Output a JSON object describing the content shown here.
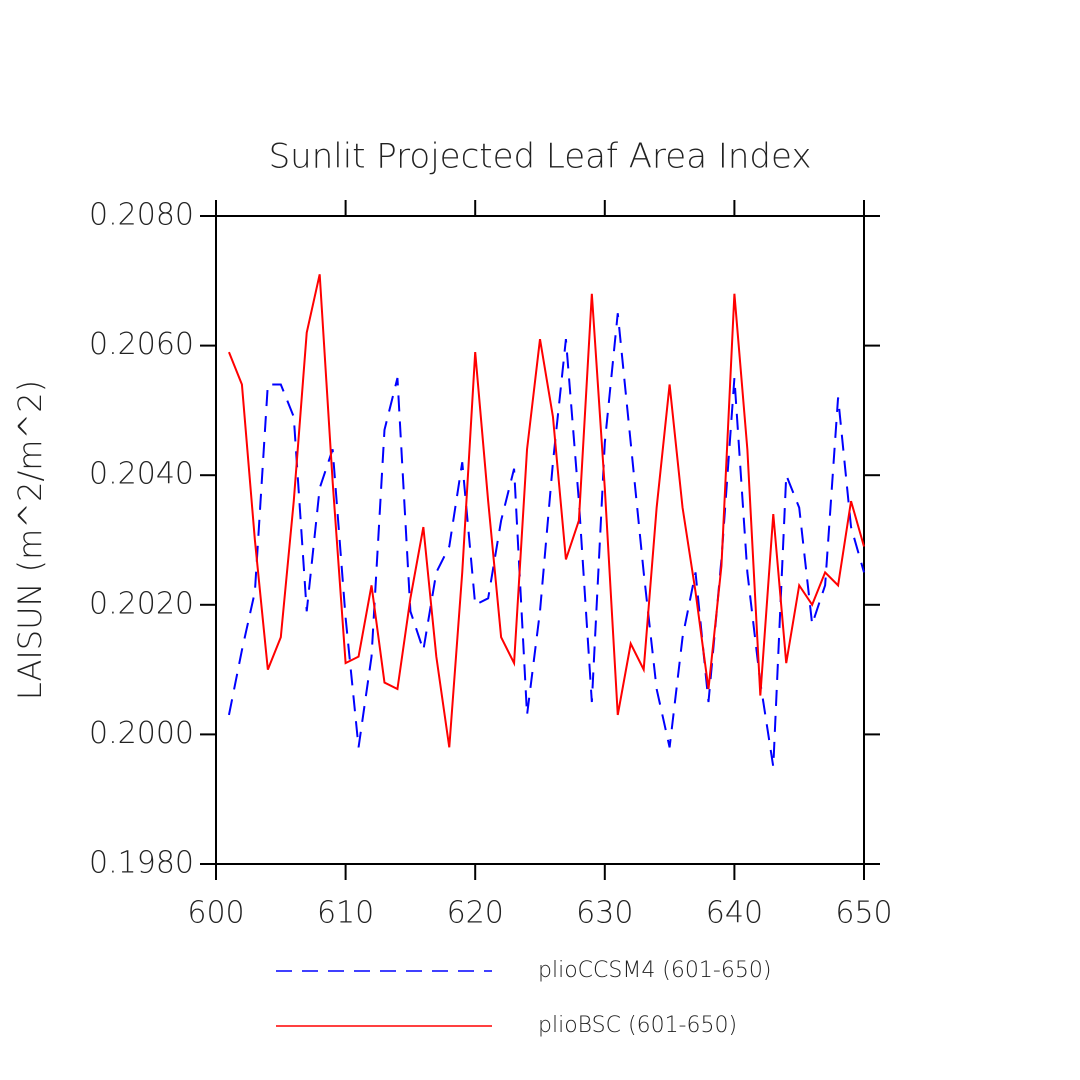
{
  "chart_data": {
    "type": "line",
    "title": "Sunlit Projected Leaf Area Index",
    "y_label": "LAISUN  (m^2/m^2)",
    "x": [
      601,
      602,
      603,
      604,
      605,
      606,
      607,
      608,
      609,
      610,
      611,
      612,
      613,
      614,
      615,
      616,
      617,
      618,
      619,
      620,
      621,
      622,
      623,
      624,
      625,
      626,
      627,
      628,
      629,
      630,
      631,
      632,
      633,
      634,
      635,
      636,
      637,
      638,
      639,
      640,
      641,
      642,
      643,
      644,
      645,
      646,
      647,
      648,
      649,
      650
    ],
    "series": [
      {
        "name": "plioCCSM4 (601-650)",
        "color": "#0000ff",
        "line_style": "dashed",
        "values": [
          0.2003,
          0.2013,
          0.2022,
          0.2054,
          0.2054,
          0.2049,
          0.2019,
          0.2038,
          0.2044,
          0.2018,
          0.1998,
          0.2012,
          0.2047,
          0.2055,
          0.2019,
          0.2013,
          0.2025,
          0.2029,
          0.2042,
          0.202,
          0.2021,
          0.2033,
          0.2041,
          0.2003,
          0.2019,
          0.2042,
          0.2061,
          0.2036,
          0.2005,
          0.2045,
          0.2065,
          0.2045,
          0.2025,
          0.2007,
          0.1998,
          0.2015,
          0.2025,
          0.2005,
          0.2027,
          0.2055,
          0.2025,
          0.2008,
          0.1995,
          0.204,
          0.2035,
          0.2017,
          0.2023,
          0.2052,
          0.2032,
          0.2025
        ]
      },
      {
        "name": "plioBSC (601-650)",
        "color": "#ff0000",
        "line_style": "solid",
        "values": [
          0.2059,
          0.2054,
          0.203,
          0.201,
          0.2015,
          0.2036,
          0.2062,
          0.2071,
          0.2039,
          0.2011,
          0.2012,
          0.2023,
          0.2008,
          0.2007,
          0.2021,
          0.2032,
          0.2012,
          0.1998,
          0.2025,
          0.2059,
          0.2036,
          0.2015,
          0.2011,
          0.2044,
          0.2061,
          0.2049,
          0.2027,
          0.2033,
          0.2068,
          0.2038,
          0.2003,
          0.2014,
          0.201,
          0.2035,
          0.2054,
          0.2035,
          0.2022,
          0.2007,
          0.2026,
          0.2068,
          0.2044,
          0.2006,
          0.2034,
          0.2011,
          0.2023,
          0.202,
          0.2025,
          0.2023,
          0.2036,
          0.2029
        ]
      }
    ],
    "xlim": [
      600,
      650
    ],
    "xticks": [
      600,
      610,
      620,
      630,
      640,
      650
    ],
    "ylim": [
      0.198,
      0.208
    ],
    "yticks": [
      {
        "value": 0.198,
        "label": "0.1980"
      },
      {
        "value": 0.2,
        "label": "0.2000"
      },
      {
        "value": 0.202,
        "label": "0.2020"
      },
      {
        "value": 0.204,
        "label": "0.2040"
      },
      {
        "value": 0.206,
        "label": "0.2060"
      },
      {
        "value": 0.208,
        "label": "0.2080"
      }
    ],
    "grid": false,
    "legend": "bottom"
  }
}
